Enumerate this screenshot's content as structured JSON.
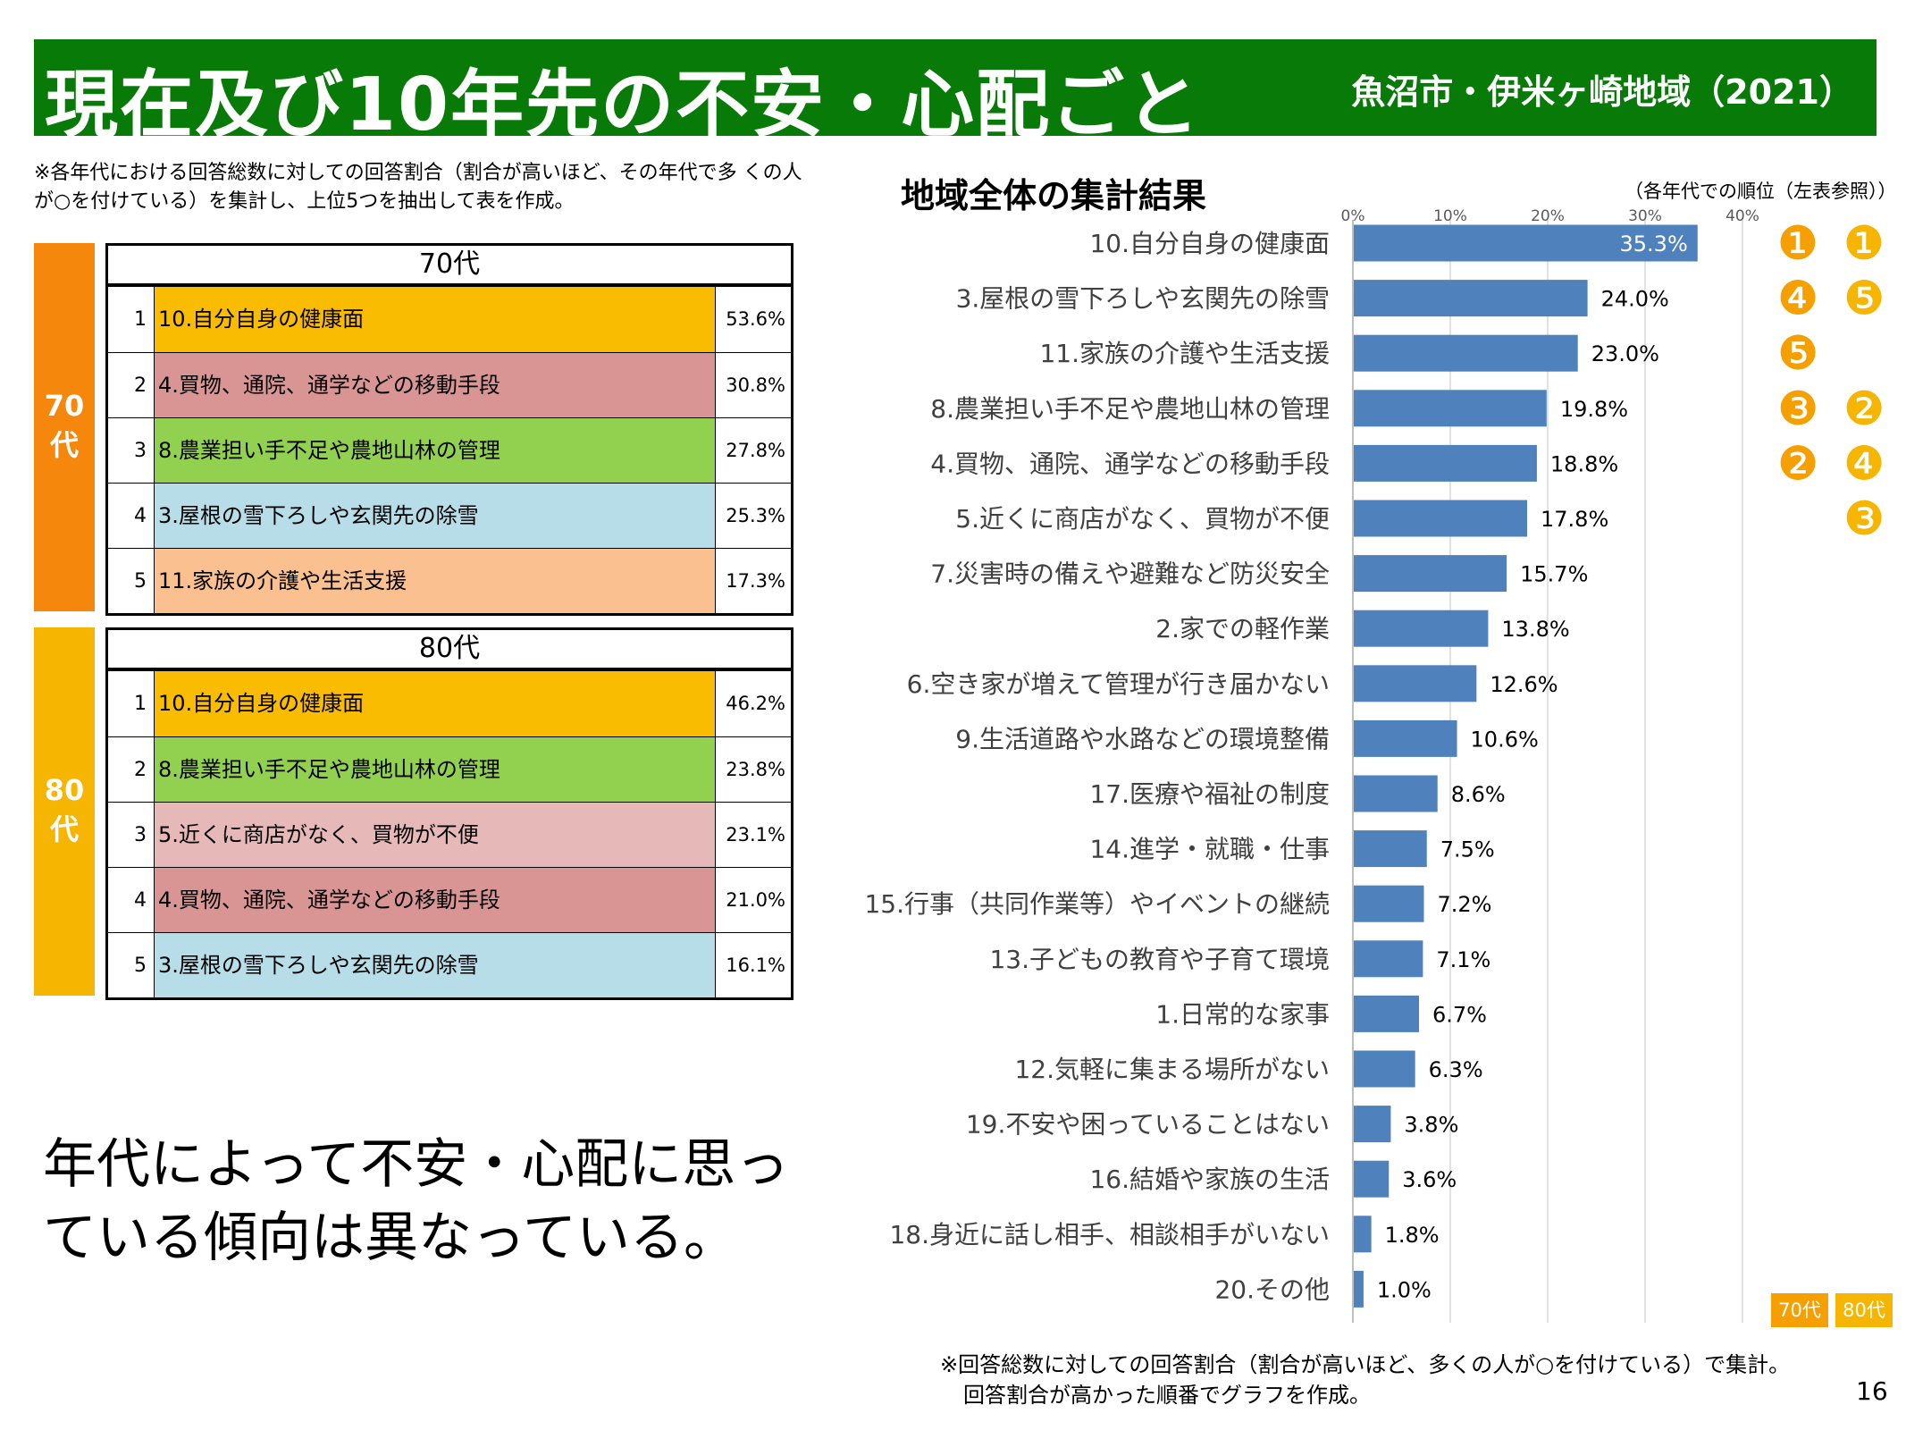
{
  "header": {
    "title": "現在及び10年先の不安・心配ごと",
    "region": "魚沼市・伊米ヶ崎地域（2021）"
  },
  "note_top": "※各年代における回答総数に対しての回答割合（割合が高いほど、その年代で多 くの人が○を付けている）を集計し、上位5つを抽出して表を作成。",
  "tables": [
    {
      "tab_label_line1": "70",
      "tab_label_line2": "代",
      "header": "70代",
      "rows": [
        {
          "rank": "1",
          "label": "10.自分自身の健康面",
          "value": "53.6%",
          "color": "#f9bc00"
        },
        {
          "rank": "2",
          "label": "4.買物、通院、通学などの移動手段",
          "value": "30.8%",
          "color": "#d99594"
        },
        {
          "rank": "3",
          "label": "8.農業担い手不足や農地山林の管理",
          "value": "27.8%",
          "color": "#92d050"
        },
        {
          "rank": "4",
          "label": "3.屋根の雪下ろしや玄関先の除雪",
          "value": "25.3%",
          "color": "#b7dee8"
        },
        {
          "rank": "5",
          "label": "11.家族の介護や生活支援",
          "value": "17.3%",
          "color": "#fac090"
        }
      ]
    },
    {
      "tab_label_line1": "80",
      "tab_label_line2": "代",
      "header": "80代",
      "rows": [
        {
          "rank": "1",
          "label": "10.自分自身の健康面",
          "value": "46.2%",
          "color": "#f9bc00"
        },
        {
          "rank": "2",
          "label": "8.農業担い手不足や農地山林の管理",
          "value": "23.8%",
          "color": "#92d050"
        },
        {
          "rank": "3",
          "label": "5.近くに商店がなく、買物が不便",
          "value": "23.1%",
          "color": "#e6b9b8"
        },
        {
          "rank": "4",
          "label": "4.買物、通院、通学などの移動手段",
          "value": "21.0%",
          "color": "#d99594"
        },
        {
          "rank": "5",
          "label": "3.屋根の雪下ろしや玄関先の除雪",
          "value": "16.1%",
          "color": "#b7dee8"
        }
      ]
    }
  ],
  "conclusion": "年代によって不安・心配に思っている傾向は異なっている。",
  "chart_title": "地域全体の集計結果",
  "rank_note": "（各年代での順位（左表参照））",
  "legend": {
    "label70": "70代",
    "label80": "80代",
    "color70": "#f5a000",
    "color80": "#f5b500"
  },
  "note_bottom_line1": "※回答総数に対しての回答割合（割合が高いほど、多くの人が○を付けている）で集計。",
  "note_bottom_line2": "回答割合が高かった順番でグラフを作成。",
  "page_number": "16",
  "chart_data": {
    "type": "bar",
    "orientation": "horizontal",
    "title": "地域全体の集計結果",
    "xlim": [
      0,
      40
    ],
    "xticks": [
      "0%",
      "10%",
      "20%",
      "30%",
      "40%"
    ],
    "grid": true,
    "bar_color": "#4f81bd",
    "categories": [
      "10.自分自身の健康面",
      "3.屋根の雪下ろしや玄関先の除雪",
      "11.家族の介護や生活支援",
      "8.農業担い手不足や農地山林の管理",
      "4.買物、通院、通学などの移動手段",
      "5.近くに商店がなく、買物が不便",
      "7.災害時の備えや避難など防災安全",
      "2.家での軽作業",
      "6.空き家が増えて管理が行き届かない",
      "9.生活道路や水路などの環境整備",
      "17.医療や福祉の制度",
      "14.進学・就職・仕事",
      "15.行事（共同作業等）やイベントの継続",
      "13.子どもの教育や子育て環境",
      "1.日常的な家事",
      "12.気軽に集まる場所がない",
      "19.不安や困っていることはない",
      "16.結婚や家族の生活",
      "18.身近に話し相手、相談相手がいない",
      "20.その他"
    ],
    "values": [
      35.3,
      24.0,
      23.0,
      19.8,
      18.8,
      17.8,
      15.7,
      13.8,
      12.6,
      10.6,
      8.6,
      7.5,
      7.2,
      7.1,
      6.7,
      6.3,
      3.8,
      3.6,
      1.8,
      1.0
    ],
    "value_labels": [
      "35.3%",
      "24.0%",
      "23.0%",
      "19.8%",
      "18.8%",
      "17.8%",
      "15.7%",
      "13.8%",
      "12.6%",
      "10.6%",
      "8.6%",
      "7.5%",
      "7.2%",
      "7.1%",
      "6.7%",
      "6.3%",
      "3.8%",
      "3.6%",
      "1.8%",
      "1.0%"
    ],
    "rank_70s": [
      "1",
      "4",
      "5",
      "3",
      "2",
      "",
      "",
      "",
      "",
      "",
      "",
      "",
      "",
      "",
      "",
      "",
      "",
      "",
      "",
      ""
    ],
    "rank_80s": [
      "1",
      "5",
      "",
      "2",
      "4",
      "3",
      "",
      "",
      "",
      "",
      "",
      "",
      "",
      "",
      "",
      "",
      "",
      "",
      "",
      ""
    ]
  }
}
